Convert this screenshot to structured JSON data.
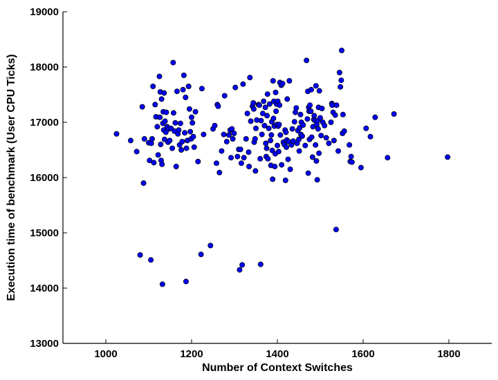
{
  "chart_data": {
    "type": "scatter",
    "xlabel": "Number of Context Switches",
    "ylabel": "Execution time of benchmark (User CPU Ticks)",
    "xlim": [
      900,
      1900
    ],
    "ylim": [
      13000,
      19000
    ],
    "xticks": [
      1000,
      1200,
      1400,
      1600,
      1800
    ],
    "yticks": [
      13000,
      14000,
      15000,
      16000,
      17000,
      18000,
      19000
    ],
    "grid": false,
    "marker_color": "#0000ff",
    "marker_edge": "#000000",
    "series": [
      {
        "points": [
          [
            1025,
            16790
          ],
          [
            1058,
            16670
          ],
          [
            1072,
            16470
          ],
          [
            1080,
            14600
          ],
          [
            1085,
            17280
          ],
          [
            1088,
            15900
          ],
          [
            1090,
            16700
          ],
          [
            1100,
            16630
          ],
          [
            1102,
            16310
          ],
          [
            1105,
            14510
          ],
          [
            1106,
            16620
          ],
          [
            1108,
            16700
          ],
          [
            1110,
            17650
          ],
          [
            1112,
            16270
          ],
          [
            1115,
            17320
          ],
          [
            1117,
            17100
          ],
          [
            1120,
            16920
          ],
          [
            1122,
            16410
          ],
          [
            1125,
            17830
          ],
          [
            1126,
            17090
          ],
          [
            1127,
            17550
          ],
          [
            1128,
            16600
          ],
          [
            1129,
            16310
          ],
          [
            1130,
            17420
          ],
          [
            1131,
            16240
          ],
          [
            1132,
            14070
          ],
          [
            1133,
            16980
          ],
          [
            1134,
            17190
          ],
          [
            1135,
            16860
          ],
          [
            1136,
            17530
          ],
          [
            1137,
            16690
          ],
          [
            1138,
            17020
          ],
          [
            1140,
            16820
          ],
          [
            1141,
            17180
          ],
          [
            1143,
            16920
          ],
          [
            1145,
            16640
          ],
          [
            1147,
            16880
          ],
          [
            1149,
            16670
          ],
          [
            1152,
            16890
          ],
          [
            1155,
            16530
          ],
          [
            1157,
            18080
          ],
          [
            1158,
            17170
          ],
          [
            1160,
            16840
          ],
          [
            1162,
            16990
          ],
          [
            1164,
            16200
          ],
          [
            1166,
            17560
          ],
          [
            1168,
            16790
          ],
          [
            1170,
            16860
          ],
          [
            1172,
            16590
          ],
          [
            1174,
            16980
          ],
          [
            1176,
            16500
          ],
          [
            1178,
            16650
          ],
          [
            1180,
            17590
          ],
          [
            1182,
            17850
          ],
          [
            1184,
            16810
          ],
          [
            1186,
            17450
          ],
          [
            1187,
            14120
          ],
          [
            1188,
            16530
          ],
          [
            1190,
            16670
          ],
          [
            1193,
            17650
          ],
          [
            1195,
            17240
          ],
          [
            1197,
            16830
          ],
          [
            1199,
            16700
          ],
          [
            1200,
            17090
          ],
          [
            1202,
            16990
          ],
          [
            1204,
            16740
          ],
          [
            1206,
            16550
          ],
          [
            1209,
            17190
          ],
          [
            1215,
            16290
          ],
          [
            1222,
            14610
          ],
          [
            1224,
            17610
          ],
          [
            1228,
            16780
          ],
          [
            1244,
            14770
          ],
          [
            1250,
            16880
          ],
          [
            1254,
            16940
          ],
          [
            1258,
            16260
          ],
          [
            1260,
            17320
          ],
          [
            1262,
            17290
          ],
          [
            1265,
            16090
          ],
          [
            1270,
            16480
          ],
          [
            1275,
            16780
          ],
          [
            1277,
            17480
          ],
          [
            1282,
            16650
          ],
          [
            1287,
            16770
          ],
          [
            1290,
            16860
          ],
          [
            1292,
            16360
          ],
          [
            1294,
            16880
          ],
          [
            1296,
            16700
          ],
          [
            1299,
            16800
          ],
          [
            1302,
            17630
          ],
          [
            1307,
            16380
          ],
          [
            1310,
            16510
          ],
          [
            1312,
            14330
          ],
          [
            1314,
            16510
          ],
          [
            1316,
            16260
          ],
          [
            1318,
            14420
          ],
          [
            1320,
            17690
          ],
          [
            1322,
            16360
          ],
          [
            1327,
            16700
          ],
          [
            1330,
            17160
          ],
          [
            1333,
            16460
          ],
          [
            1334,
            16200
          ],
          [
            1336,
            17810
          ],
          [
            1338,
            17020
          ],
          [
            1342,
            17290
          ],
          [
            1344,
            17350
          ],
          [
            1345,
            17240
          ],
          [
            1346,
            16640
          ],
          [
            1348,
            16700
          ],
          [
            1349,
            16120
          ],
          [
            1350,
            16890
          ],
          [
            1352,
            17040
          ],
          [
            1356,
            17320
          ],
          [
            1358,
            17310
          ],
          [
            1360,
            16340
          ],
          [
            1361,
            14430
          ],
          [
            1362,
            17030
          ],
          [
            1364,
            16780
          ],
          [
            1366,
            17160
          ],
          [
            1368,
            17380
          ],
          [
            1370,
            16940
          ],
          [
            1372,
            17270
          ],
          [
            1373,
            16620
          ],
          [
            1374,
            16380
          ],
          [
            1375,
            16530
          ],
          [
            1376,
            17120
          ],
          [
            1377,
            17510
          ],
          [
            1378,
            16340
          ],
          [
            1380,
            16890
          ],
          [
            1382,
            17330
          ],
          [
            1384,
            16670
          ],
          [
            1385,
            16220
          ],
          [
            1386,
            16770
          ],
          [
            1387,
            17010
          ],
          [
            1388,
            16490
          ],
          [
            1389,
            15970
          ],
          [
            1390,
            17750
          ],
          [
            1391,
            17070
          ],
          [
            1392,
            17380
          ],
          [
            1393,
            16930
          ],
          [
            1394,
            16200
          ],
          [
            1395,
            16430
          ],
          [
            1396,
            17540
          ],
          [
            1397,
            17200
          ],
          [
            1398,
            17330
          ],
          [
            1399,
            16960
          ],
          [
            1400,
            16580
          ],
          [
            1401,
            17380
          ],
          [
            1402,
            16930
          ],
          [
            1403,
            16470
          ],
          [
            1404,
            16960
          ],
          [
            1405,
            17310
          ],
          [
            1406,
            17720
          ],
          [
            1407,
            16770
          ],
          [
            1409,
            17670
          ],
          [
            1410,
            16230
          ],
          [
            1412,
            17700
          ],
          [
            1414,
            16640
          ],
          [
            1416,
            16600
          ],
          [
            1418,
            16860
          ],
          [
            1419,
            15950
          ],
          [
            1420,
            16820
          ],
          [
            1421,
            16550
          ],
          [
            1422,
            16680
          ],
          [
            1423,
            17420
          ],
          [
            1425,
            16330
          ],
          [
            1426,
            16650
          ],
          [
            1428,
            17750
          ],
          [
            1430,
            16150
          ],
          [
            1433,
            16590
          ],
          [
            1435,
            16880
          ],
          [
            1437,
            16660
          ],
          [
            1440,
            17010
          ],
          [
            1442,
            17180
          ],
          [
            1444,
            17260
          ],
          [
            1446,
            16620
          ],
          [
            1448,
            16850
          ],
          [
            1450,
            16690
          ],
          [
            1451,
            16480
          ],
          [
            1452,
            16900
          ],
          [
            1454,
            17140
          ],
          [
            1455,
            16780
          ],
          [
            1456,
            17000
          ],
          [
            1458,
            16750
          ],
          [
            1460,
            16950
          ],
          [
            1465,
            16580
          ],
          [
            1468,
            18120
          ],
          [
            1470,
            17060
          ],
          [
            1471,
            17560
          ],
          [
            1472,
            16080
          ],
          [
            1473,
            17270
          ],
          [
            1474,
            17200
          ],
          [
            1475,
            16690
          ],
          [
            1476,
            17310
          ],
          [
            1478,
            17200
          ],
          [
            1479,
            17590
          ],
          [
            1480,
            16730
          ],
          [
            1482,
            16370
          ],
          [
            1483,
            16920
          ],
          [
            1485,
            17050
          ],
          [
            1486,
            17120
          ],
          [
            1488,
            17030
          ],
          [
            1489,
            16590
          ],
          [
            1490,
            17660
          ],
          [
            1491,
            16300
          ],
          [
            1492,
            16960
          ],
          [
            1493,
            15960
          ],
          [
            1494,
            17030
          ],
          [
            1495,
            16880
          ],
          [
            1496,
            17270
          ],
          [
            1497,
            16440
          ],
          [
            1498,
            17570
          ],
          [
            1500,
            17080
          ],
          [
            1502,
            16760
          ],
          [
            1504,
            17250
          ],
          [
            1506,
            17000
          ],
          [
            1510,
            16940
          ],
          [
            1514,
            16720
          ],
          [
            1520,
            16620
          ],
          [
            1525,
            17000
          ],
          [
            1527,
            17340
          ],
          [
            1528,
            17310
          ],
          [
            1530,
            17180
          ],
          [
            1532,
            16670
          ],
          [
            1535,
            17130
          ],
          [
            1537,
            15060
          ],
          [
            1538,
            17310
          ],
          [
            1542,
            16480
          ],
          [
            1545,
            17900
          ],
          [
            1547,
            17640
          ],
          [
            1549,
            17760
          ],
          [
            1550,
            18300
          ],
          [
            1552,
            16800
          ],
          [
            1553,
            17140
          ],
          [
            1556,
            16840
          ],
          [
            1568,
            16590
          ],
          [
            1570,
            16290
          ],
          [
            1572,
            16380
          ],
          [
            1574,
            16280
          ],
          [
            1595,
            16180
          ],
          [
            1607,
            16890
          ],
          [
            1617,
            16740
          ],
          [
            1628,
            17090
          ],
          [
            1657,
            16360
          ],
          [
            1672,
            17150
          ],
          [
            1797,
            16370
          ]
        ]
      }
    ]
  }
}
